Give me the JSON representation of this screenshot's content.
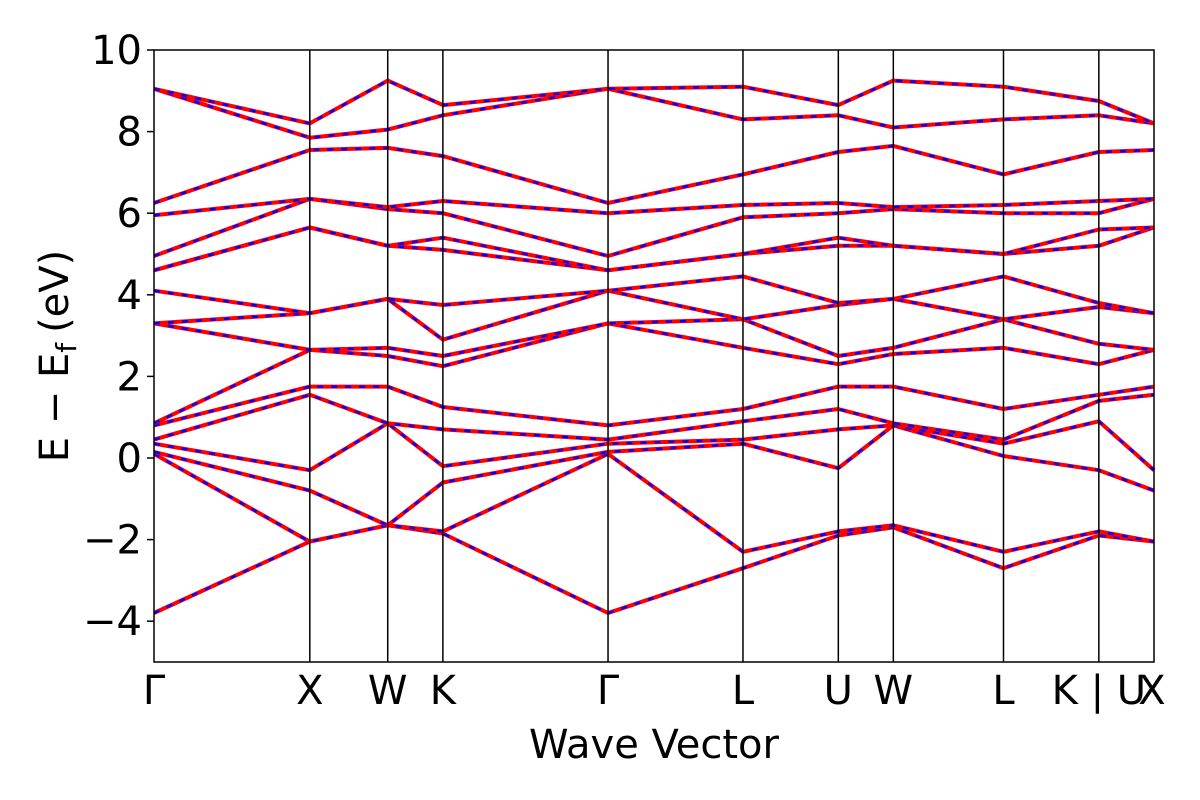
{
  "chart_data": {
    "type": "line",
    "xlabel": "Wave Vector",
    "ylabel": "E − E",
    "ylabel_sub": "f",
    "ylabel_unit": "(eV)",
    "ylim": [
      -5,
      10
    ],
    "yticks": [
      -4,
      -2,
      0,
      2,
      4,
      6,
      8,
      10
    ],
    "ytick_labels": [
      "−4",
      "−2",
      "0",
      "2",
      "4",
      "6",
      "8",
      "10"
    ],
    "grid": false,
    "kpath": [
      {
        "label": "Γ",
        "k": 0.0
      },
      {
        "label": "X",
        "k": 1.0
      },
      {
        "label": "W",
        "k": 1.5
      },
      {
        "label": "K",
        "k": 1.854
      },
      {
        "label": "Γ",
        "k": 2.914
      },
      {
        "label": "L",
        "k": 3.78
      },
      {
        "label": "U",
        "k": 4.392
      },
      {
        "label": "W",
        "k": 4.745
      },
      {
        "label": "L",
        "k": 5.452
      },
      {
        "label": "K | U",
        "k": 6.064
      },
      {
        "label": "X",
        "k": 6.418
      }
    ],
    "series_colors": {
      "spin_up": "#0000ff",
      "spin_down": "#ff0000"
    },
    "bands": [
      {
        "x": [
          0,
          1.0,
          1.5,
          1.854,
          2.914,
          3.78,
          4.392,
          4.745,
          5.452,
          6.064,
          6.418
        ],
        "y": [
          -3.8,
          -2.05,
          -1.65,
          -1.85,
          -3.8,
          -2.7,
          -1.9,
          -1.7,
          -2.7,
          -1.9,
          -2.05
        ]
      },
      {
        "x": [
          0,
          1.0,
          1.5,
          1.854,
          2.914,
          3.78,
          4.392,
          4.745,
          5.452,
          6.064,
          6.418
        ],
        "y": [
          0.1,
          -2.05,
          -1.65,
          -1.8,
          0.1,
          -2.3,
          -1.8,
          -1.65,
          -2.3,
          -1.8,
          -2.05
        ]
      },
      {
        "x": [
          0,
          1.0,
          1.5,
          1.854,
          2.914,
          3.78,
          4.392,
          4.745,
          5.452,
          6.064,
          6.418
        ],
        "y": [
          0.15,
          -0.8,
          -1.65,
          -0.6,
          0.15,
          0.35,
          -0.25,
          0.8,
          0.05,
          -0.3,
          -0.8
        ]
      },
      {
        "x": [
          0,
          1.0,
          1.5,
          1.854,
          2.914,
          3.78,
          4.392,
          4.745,
          5.452,
          6.064,
          6.418
        ],
        "y": [
          0.35,
          -0.3,
          0.85,
          -0.2,
          0.35,
          0.45,
          0.7,
          0.8,
          0.35,
          0.9,
          -0.3
        ]
      },
      {
        "x": [
          0,
          1.0,
          1.5,
          1.854,
          2.914,
          3.78,
          4.392,
          4.745,
          5.452,
          6.064,
          6.418
        ],
        "y": [
          0.45,
          1.55,
          0.85,
          0.7,
          0.45,
          0.9,
          1.2,
          0.85,
          0.45,
          1.4,
          1.55
        ]
      },
      {
        "x": [
          0,
          1.0,
          1.5,
          1.854,
          2.914,
          3.78,
          4.392,
          4.745,
          5.452,
          6.064,
          6.418
        ],
        "y": [
          0.8,
          1.75,
          1.75,
          1.25,
          0.8,
          1.2,
          1.75,
          1.75,
          1.2,
          1.55,
          1.75
        ]
      },
      {
        "x": [
          0,
          1.0,
          1.5,
          1.854,
          2.914,
          3.78,
          4.392,
          4.745,
          5.452,
          6.064,
          6.418
        ],
        "y": [
          0.85,
          2.65,
          2.5,
          2.25,
          3.3,
          2.7,
          2.3,
          2.55,
          2.7,
          2.3,
          2.65
        ]
      },
      {
        "x": [
          0,
          1.0,
          1.5,
          1.854,
          2.914,
          3.78,
          4.392,
          4.745,
          5.452,
          6.064,
          6.418
        ],
        "y": [
          3.3,
          2.65,
          2.7,
          2.5,
          3.3,
          3.4,
          2.5,
          2.7,
          3.4,
          2.8,
          2.65
        ]
      },
      {
        "x": [
          0,
          1.0,
          1.5,
          1.854,
          2.914,
          3.78,
          4.392,
          4.745,
          5.452,
          6.064,
          6.418
        ],
        "y": [
          3.3,
          3.55,
          3.9,
          2.9,
          4.1,
          3.4,
          3.75,
          3.9,
          3.4,
          3.7,
          3.55
        ]
      },
      {
        "x": [
          0,
          1.0,
          1.5,
          1.854,
          2.914,
          3.78,
          4.392,
          4.745,
          5.452,
          6.064,
          6.418
        ],
        "y": [
          4.1,
          3.55,
          3.9,
          3.75,
          4.1,
          4.45,
          3.8,
          3.9,
          4.45,
          3.8,
          3.55
        ]
      },
      {
        "x": [
          0,
          1.0,
          1.5,
          1.854,
          2.914,
          3.78,
          4.392,
          4.745,
          5.452,
          6.064,
          6.418
        ],
        "y": [
          4.6,
          5.65,
          5.2,
          5.1,
          4.6,
          5.0,
          5.2,
          5.2,
          5.0,
          5.2,
          5.65
        ]
      },
      {
        "x": [
          0,
          1.0,
          1.5,
          1.854,
          2.914,
          3.78,
          4.392,
          4.745,
          5.452,
          6.064,
          6.418
        ],
        "y": [
          4.6,
          5.65,
          5.2,
          5.4,
          4.6,
          5.0,
          5.4,
          5.2,
          5.0,
          5.6,
          5.65
        ]
      },
      {
        "x": [
          0,
          1.0,
          1.5,
          1.854,
          2.914,
          3.78,
          4.392,
          4.745,
          5.452,
          6.064,
          6.418
        ],
        "y": [
          4.95,
          6.35,
          6.1,
          6.0,
          4.95,
          5.9,
          6.0,
          6.1,
          6.0,
          6.0,
          6.35
        ]
      },
      {
        "x": [
          0,
          1.0,
          1.5,
          1.854,
          2.914,
          3.78,
          4.392,
          4.745,
          5.452,
          6.064,
          6.418
        ],
        "y": [
          5.95,
          6.35,
          6.15,
          6.3,
          6.0,
          6.2,
          6.25,
          6.15,
          6.2,
          6.3,
          6.35
        ]
      },
      {
        "x": [
          0,
          1.0,
          1.5,
          1.854,
          2.914,
          3.78,
          4.392,
          4.745,
          5.452,
          6.064,
          6.418
        ],
        "y": [
          6.25,
          7.55,
          7.6,
          7.4,
          6.25,
          6.95,
          7.5,
          7.65,
          6.95,
          7.5,
          7.55
        ]
      },
      {
        "x": [
          0,
          1.0,
          1.5,
          1.854,
          2.914,
          3.78,
          4.392,
          4.745,
          5.452,
          6.064,
          6.418
        ],
        "y": [
          9.05,
          7.85,
          8.05,
          8.4,
          9.05,
          8.3,
          8.4,
          8.1,
          8.3,
          8.4,
          8.2
        ]
      },
      {
        "x": [
          0,
          1.0,
          1.5,
          1.854,
          2.914,
          3.78,
          4.392,
          4.745,
          5.452,
          6.064,
          6.418
        ],
        "y": [
          9.05,
          8.2,
          9.25,
          8.65,
          9.05,
          9.1,
          8.65,
          9.25,
          9.1,
          8.75,
          8.2
        ]
      }
    ]
  }
}
